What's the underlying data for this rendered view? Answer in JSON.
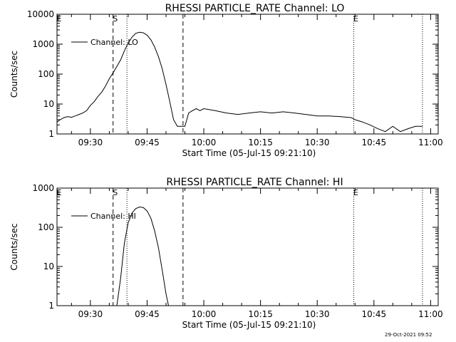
{
  "chart_data": [
    {
      "type": "line",
      "title": "RHESSI PARTICLE_RATE Channel: LO",
      "xlabel": "Start Time (05-Jul-15 09:21:10)",
      "ylabel": "Counts/sec",
      "yscale": "log",
      "ylim": [
        1,
        10000
      ],
      "xlim": [
        "09:21:10",
        "11:02:00"
      ],
      "x_tick_labels": [
        "09:30",
        "09:45",
        "10:00",
        "10:15",
        "10:30",
        "10:45",
        "11:00"
      ],
      "y_tick_labels": [
        "1",
        "10",
        "100",
        "1000",
        "10000"
      ],
      "legend": {
        "entries": [
          "Channel: LO"
        ],
        "position": "top-left"
      },
      "markers": [
        {
          "label": "E",
          "time": "09:21:10",
          "style": "dotted"
        },
        {
          "label": "S",
          "time": "09:36:00",
          "style": "dashed"
        },
        {
          "label": "",
          "time": "09:39:40",
          "style": "dotted"
        },
        {
          "label": "",
          "time": "09:54:30",
          "style": "dashed"
        },
        {
          "label": "E",
          "time": "10:39:40",
          "style": "dotted"
        },
        {
          "label": "",
          "time": "10:57:50",
          "style": "dotted"
        }
      ],
      "series": [
        {
          "name": "Channel: LO",
          "x": [
            "09:21:10",
            "09:22:00",
            "09:23:00",
            "09:24:00",
            "09:25:00",
            "09:26:00",
            "09:27:00",
            "09:28:00",
            "09:29:00",
            "09:30:00",
            "09:31:00",
            "09:32:00",
            "09:33:00",
            "09:34:00",
            "09:35:00",
            "09:36:00",
            "09:37:00",
            "09:38:00",
            "09:39:00",
            "09:40:00",
            "09:41:00",
            "09:42:00",
            "09:43:00",
            "09:44:00",
            "09:45:00",
            "09:46:00",
            "09:47:00",
            "09:48:00",
            "09:49:00",
            "09:50:00",
            "09:51:00",
            "09:52:00",
            "09:53:00",
            "09:54:00",
            "09:55:00",
            "09:56:00",
            "09:57:00",
            "09:58:00",
            "09:59:00",
            "10:00:00",
            "10:03:00",
            "10:06:00",
            "10:09:00",
            "10:12:00",
            "10:15:00",
            "10:18:00",
            "10:21:00",
            "10:24:00",
            "10:27:00",
            "10:30:00",
            "10:33:00",
            "10:36:00",
            "10:39:00",
            "10:40:00",
            "10:42:00",
            "10:44:00",
            "10:46:00",
            "10:48:00",
            "10:50:00",
            "10:52:00",
            "10:54:00",
            "10:56:00",
            "10:57:50"
          ],
          "y": [
            2.5,
            3,
            3.5,
            3.8,
            3.6,
            4,
            4.5,
            5,
            6,
            9,
            12,
            18,
            25,
            40,
            70,
            110,
            180,
            300,
            600,
            1100,
            1700,
            2300,
            2500,
            2400,
            2000,
            1400,
            800,
            380,
            150,
            45,
            12,
            3,
            1.8,
            1.8,
            1.8,
            5,
            6,
            7,
            6,
            7,
            6,
            5,
            4.5,
            5,
            5.5,
            5,
            5.5,
            5,
            4.5,
            4,
            4,
            3.8,
            3.5,
            3,
            2.5,
            2,
            1.5,
            1.2,
            1.8,
            1.2,
            1.5,
            1.8,
            1.8
          ]
        }
      ]
    },
    {
      "type": "line",
      "title": "RHESSI PARTICLE_RATE Channel: HI",
      "xlabel": "Start Time (05-Jul-15 09:21:10)",
      "ylabel": "Counts/sec",
      "yscale": "log",
      "ylim": [
        1,
        1000
      ],
      "xlim": [
        "09:21:10",
        "11:02:00"
      ],
      "x_tick_labels": [
        "09:30",
        "09:45",
        "10:00",
        "10:15",
        "10:30",
        "10:45",
        "11:00"
      ],
      "y_tick_labels": [
        "1",
        "10",
        "100",
        "1000"
      ],
      "legend": {
        "entries": [
          "Channel: HI"
        ],
        "position": "top-left"
      },
      "markers": [
        {
          "label": "E",
          "time": "09:21:10",
          "style": "dotted"
        },
        {
          "label": "S",
          "time": "09:36:00",
          "style": "dashed"
        },
        {
          "label": "",
          "time": "09:39:40",
          "style": "dotted"
        },
        {
          "label": "",
          "time": "09:54:30",
          "style": "dashed"
        },
        {
          "label": "E",
          "time": "10:39:40",
          "style": "dotted"
        },
        {
          "label": "",
          "time": "10:57:50",
          "style": "dotted"
        }
      ],
      "series": [
        {
          "name": "Channel: HI",
          "x": [
            "09:37:00",
            "09:38:00",
            "09:39:00",
            "09:40:00",
            "09:41:00",
            "09:42:00",
            "09:43:00",
            "09:44:00",
            "09:45:00",
            "09:46:00",
            "09:47:00",
            "09:48:00",
            "09:49:00",
            "09:50:00",
            "09:50:40"
          ],
          "y": [
            1,
            5,
            40,
            130,
            230,
            300,
            330,
            320,
            260,
            170,
            80,
            30,
            8,
            2,
            1
          ]
        }
      ]
    }
  ],
  "footer": {
    "timestamp": "29-Oct-2021 09:52"
  }
}
